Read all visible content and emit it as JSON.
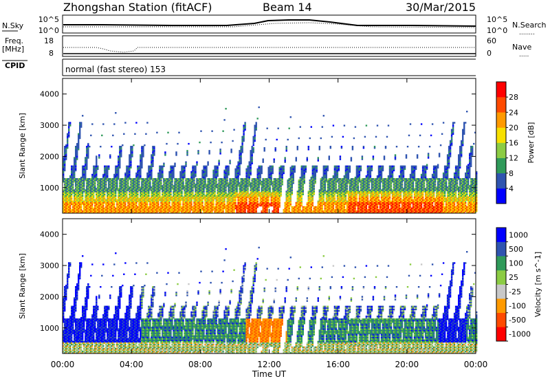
{
  "header": {
    "title": "Zhongshan Station (fitACF)",
    "beam": "Beam 14",
    "date": "30/Mar/2015"
  },
  "panels": {
    "nsky": {
      "label": "N.Sky",
      "left_ticks": [
        "10^5",
        "10^0"
      ],
      "right_ticks": [
        "10^5",
        "10^0"
      ],
      "right_label": "N.Search",
      "right_key": "........"
    },
    "freq": {
      "label_1": "Freq.",
      "label_2": "[MHz]",
      "left_ticks": [
        "18",
        "8"
      ],
      "right_ticks": [
        "60",
        "0"
      ],
      "right_label": "Nave",
      "right_key": "....."
    },
    "cpid": {
      "label": "CPID",
      "mode": "normal (fast stereo) 153"
    }
  },
  "colors": {
    "power": [
      "#0000ff",
      "#2f54b0",
      "#2f9a5a",
      "#8ccc44",
      "#f7e000",
      "#ff9a00",
      "#ff4a00",
      "#ff0000"
    ],
    "velocity": [
      "#ff0000",
      "#ff4a00",
      "#ff9a00",
      "#c8c8c8",
      "#8ccc44",
      "#2f9a5a",
      "#2f54b0",
      "#0000ff"
    ]
  },
  "chart_data": [
    {
      "type": "heatmap",
      "quantity": "power",
      "ylabel": "Slant Range [km]",
      "ylim": [
        180,
        4500
      ],
      "yticks": [
        1000,
        2000,
        3000,
        4000
      ],
      "ytick_labels": [
        "1000",
        "2000",
        "3000",
        "4000"
      ],
      "xlim_hours": [
        0,
        24
      ],
      "colorbar_label": "Power [dB]",
      "colorbar_tick_labels": [
        "4",
        "8",
        "12",
        "16",
        "20",
        "24",
        "28"
      ]
    },
    {
      "type": "heatmap",
      "quantity": "velocity",
      "ylabel": "Slant Range [km]",
      "ylim": [
        180,
        4500
      ],
      "yticks": [
        1000,
        2000,
        3000,
        4000
      ],
      "ytick_labels": [
        "1000",
        "2000",
        "3000",
        "4000"
      ],
      "xlim_hours": [
        0,
        24
      ],
      "xlabel": "Time UT",
      "xtick_labels": [
        "00:00",
        "04:00",
        "08:00",
        "12:00",
        "16:00",
        "20:00",
        "00:00"
      ],
      "colorbar_label": "Velocity [m s^-1]",
      "colorbar_tick_labels": [
        "1000",
        "500",
        "100",
        "25",
        "-25",
        "-100",
        "-500",
        "-1000"
      ]
    }
  ]
}
